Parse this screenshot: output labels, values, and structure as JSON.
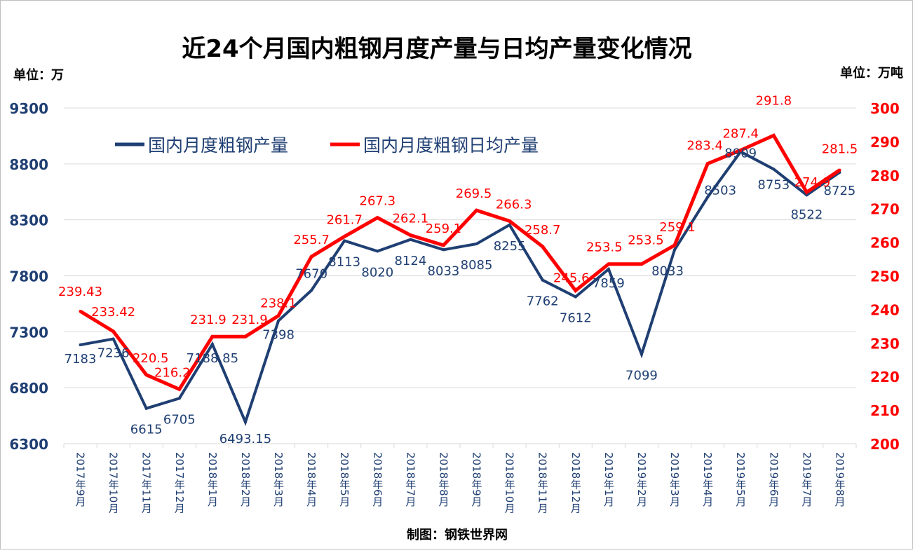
{
  "chart_data": {
    "type": "line",
    "title": "近24个月国内粗钢月度产量与日均产量变化情况",
    "left_unit": "单位：万",
    "right_unit": "单位：万吨",
    "source": "制图：钢铁世界网",
    "categories": [
      "2017年9月",
      "2017年10月",
      "2017年11月",
      "2017年12月",
      "2018年1月",
      "2018年2月",
      "2018年3月",
      "2018年4月",
      "2018年5月",
      "2018年6月",
      "2018年7月",
      "2018年8月",
      "2018年9月",
      "2018年10月",
      "2018年11月",
      "2018年12月",
      "2019年1月",
      "2019年2月",
      "2019年3月",
      "2019年4月",
      "2019年5月",
      "2019年6月",
      "2019年7月",
      "2019年8月"
    ],
    "left_axis": {
      "ylim": [
        6300,
        9300
      ],
      "ticks": [
        "6300",
        "6800",
        "7300",
        "7800",
        "8300",
        "8800",
        "9300"
      ]
    },
    "right_axis": {
      "ylim": [
        200,
        300
      ],
      "ticks": [
        "200",
        "210",
        "220",
        "230",
        "240",
        "250",
        "260",
        "270",
        "280",
        "290",
        "300"
      ]
    },
    "grid": true,
    "legend_position": "top-left",
    "series": [
      {
        "name": "国内月度粗钢产量",
        "axis": "left",
        "color": "#1F3F73",
        "values": [
          7183,
          7236,
          6615,
          6705,
          7188.85,
          6493.15,
          7398,
          7670,
          8113,
          8020,
          8124,
          8033,
          8085,
          8255,
          7762,
          7612,
          7859,
          7099,
          8033,
          8503,
          8909,
          8753,
          8522,
          8725
        ],
        "labels": [
          "7183",
          "7236",
          "6615",
          "6705",
          "7188.85",
          "6493.15",
          "7398",
          "7670",
          "8113",
          "8020",
          "8124",
          "8033",
          "8085",
          "8255",
          "7762",
          "7612",
          "7859",
          "7099",
          "8033",
          "8503",
          "8909",
          "8753",
          "8522",
          "8725"
        ]
      },
      {
        "name": "国内月度粗钢日均产量",
        "axis": "right",
        "color": "#FF0000",
        "values": [
          239.43,
          233.42,
          220.5,
          216.2,
          231.9,
          231.9,
          238.1,
          255.7,
          261.7,
          267.3,
          262.1,
          259.1,
          269.5,
          266.3,
          258.7,
          245.6,
          253.5,
          253.5,
          259.1,
          283.4,
          287.4,
          291.8,
          274.9,
          281.5
        ],
        "labels": [
          "239.43",
          "233.42",
          "220.5",
          "216.2",
          "231.9",
          "231.9",
          "238.1",
          "255.7",
          "261.7",
          "267.3",
          "262.1",
          "259.1",
          "269.5",
          "266.3",
          "258.7",
          "245.6",
          "253.5",
          "253.5",
          "259.1",
          "283.4",
          "287.4",
          "291.8",
          "274.9",
          "281.5"
        ]
      }
    ]
  }
}
